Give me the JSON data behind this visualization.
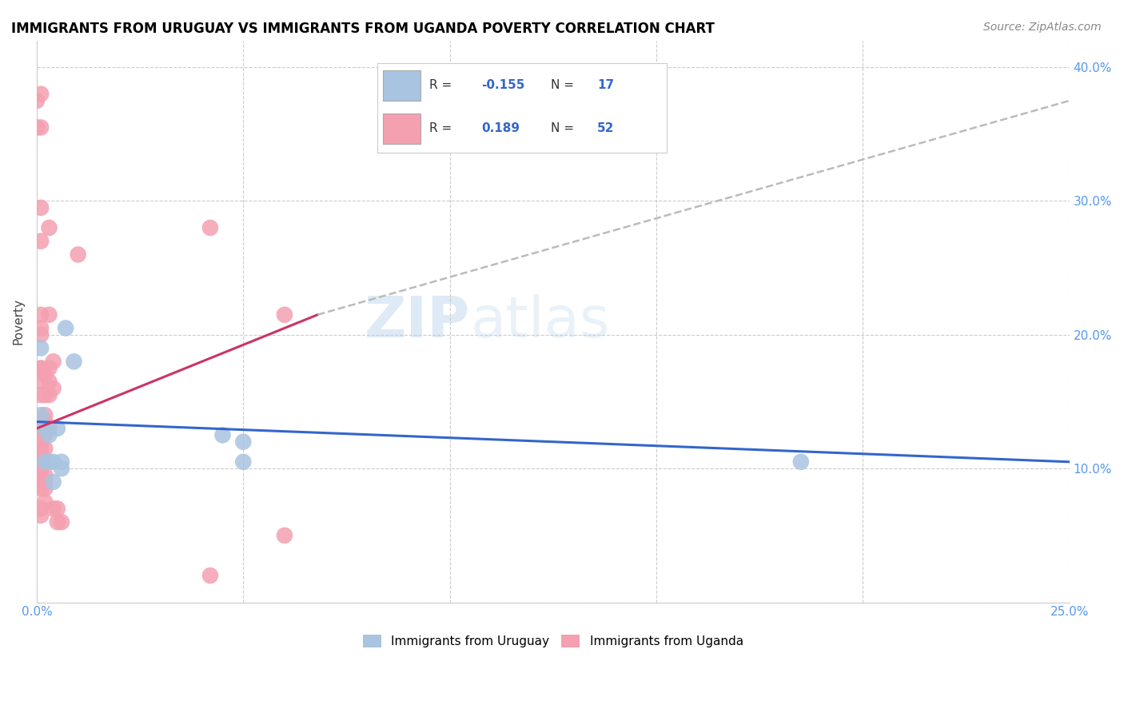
{
  "title": "IMMIGRANTS FROM URUGUAY VS IMMIGRANTS FROM UGANDA POVERTY CORRELATION CHART",
  "source": "Source: ZipAtlas.com",
  "ylabel": "Poverty",
  "xlim": [
    0,
    0.25
  ],
  "ylim": [
    0,
    0.42
  ],
  "xticks": [
    0.0,
    0.05,
    0.1,
    0.15,
    0.2,
    0.25
  ],
  "yticks": [
    0.0,
    0.1,
    0.2,
    0.3,
    0.4
  ],
  "legend_labels": [
    "Immigrants from Uruguay",
    "Immigrants from Uganda"
  ],
  "blue_R": "-0.155",
  "blue_N": "17",
  "pink_R": "0.189",
  "pink_N": "52",
  "blue_color": "#a8c4e0",
  "pink_color": "#f4a0b0",
  "blue_line_color": "#3366cc",
  "pink_line_color": "#cc3366",
  "dashed_line_color": "#bbbbbb",
  "watermark_zip": "ZIP",
  "watermark_atlas": "atlas",
  "blue_line": [
    [
      0.0,
      0.135
    ],
    [
      0.25,
      0.105
    ]
  ],
  "pink_line_solid": [
    [
      0.0,
      0.13
    ],
    [
      0.068,
      0.215
    ]
  ],
  "pink_line_dashed": [
    [
      0.068,
      0.215
    ],
    [
      0.25,
      0.375
    ]
  ],
  "blue_points": [
    [
      0.001,
      0.14
    ],
    [
      0.001,
      0.19
    ],
    [
      0.002,
      0.13
    ],
    [
      0.002,
      0.105
    ],
    [
      0.003,
      0.125
    ],
    [
      0.003,
      0.105
    ],
    [
      0.004,
      0.105
    ],
    [
      0.004,
      0.09
    ],
    [
      0.005,
      0.13
    ],
    [
      0.006,
      0.1
    ],
    [
      0.006,
      0.105
    ],
    [
      0.007,
      0.205
    ],
    [
      0.009,
      0.18
    ],
    [
      0.045,
      0.125
    ],
    [
      0.05,
      0.105
    ],
    [
      0.05,
      0.12
    ],
    [
      0.185,
      0.105
    ]
  ],
  "pink_points": [
    [
      0.0,
      0.375
    ],
    [
      0.001,
      0.38
    ],
    [
      0.001,
      0.295
    ],
    [
      0.001,
      0.27
    ],
    [
      0.001,
      0.215
    ],
    [
      0.001,
      0.2
    ],
    [
      0.001,
      0.175
    ],
    [
      0.001,
      0.165
    ],
    [
      0.001,
      0.155
    ],
    [
      0.001,
      0.135
    ],
    [
      0.001,
      0.13
    ],
    [
      0.001,
      0.12
    ],
    [
      0.001,
      0.115
    ],
    [
      0.001,
      0.11
    ],
    [
      0.001,
      0.105
    ],
    [
      0.001,
      0.1
    ],
    [
      0.001,
      0.095
    ],
    [
      0.001,
      0.09
    ],
    [
      0.001,
      0.085
    ],
    [
      0.001,
      0.07
    ],
    [
      0.001,
      0.065
    ],
    [
      0.002,
      0.17
    ],
    [
      0.002,
      0.155
    ],
    [
      0.002,
      0.14
    ],
    [
      0.002,
      0.135
    ],
    [
      0.002,
      0.125
    ],
    [
      0.002,
      0.115
    ],
    [
      0.002,
      0.095
    ],
    [
      0.002,
      0.09
    ],
    [
      0.002,
      0.085
    ],
    [
      0.002,
      0.075
    ],
    [
      0.003,
      0.28
    ],
    [
      0.003,
      0.215
    ],
    [
      0.003,
      0.175
    ],
    [
      0.003,
      0.165
    ],
    [
      0.003,
      0.155
    ],
    [
      0.004,
      0.18
    ],
    [
      0.004,
      0.16
    ],
    [
      0.004,
      0.07
    ],
    [
      0.005,
      0.07
    ],
    [
      0.005,
      0.06
    ],
    [
      0.006,
      0.06
    ],
    [
      0.01,
      0.26
    ],
    [
      0.042,
      0.28
    ],
    [
      0.042,
      0.02
    ],
    [
      0.06,
      0.215
    ],
    [
      0.06,
      0.05
    ],
    [
      0.001,
      0.175
    ],
    [
      0.002,
      0.13
    ],
    [
      0.003,
      0.13
    ],
    [
      0.001,
      0.205
    ],
    [
      0.001,
      0.355
    ],
    [
      0.0,
      0.355
    ]
  ]
}
